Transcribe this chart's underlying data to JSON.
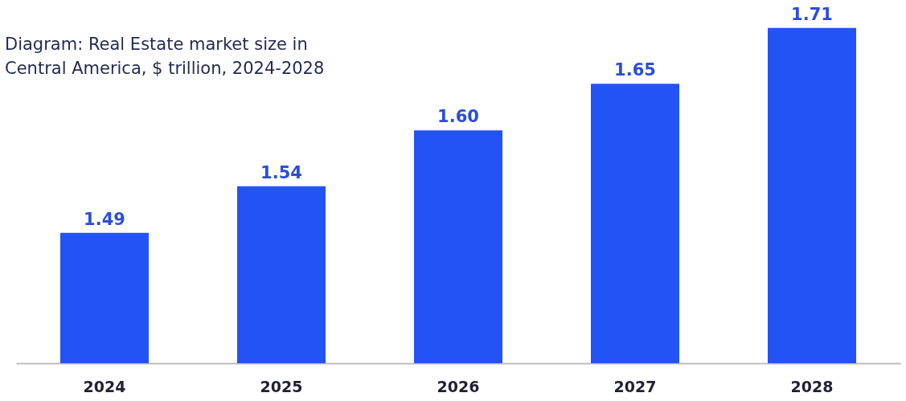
{
  "chart_data": {
    "type": "bar",
    "title": "Diagram: Real Estate market size in Central America, $ trillion, 2024-2028",
    "categories": [
      "2024",
      "2025",
      "2026",
      "2027",
      "2028"
    ],
    "values": [
      1.49,
      1.54,
      1.6,
      1.65,
      1.71
    ],
    "value_labels": [
      "1.49",
      "1.54",
      "1.60",
      "1.65",
      "1.71"
    ],
    "color": "#2453f5",
    "ylim": [
      1.35,
      1.74
    ],
    "tick_labels": "x"
  }
}
